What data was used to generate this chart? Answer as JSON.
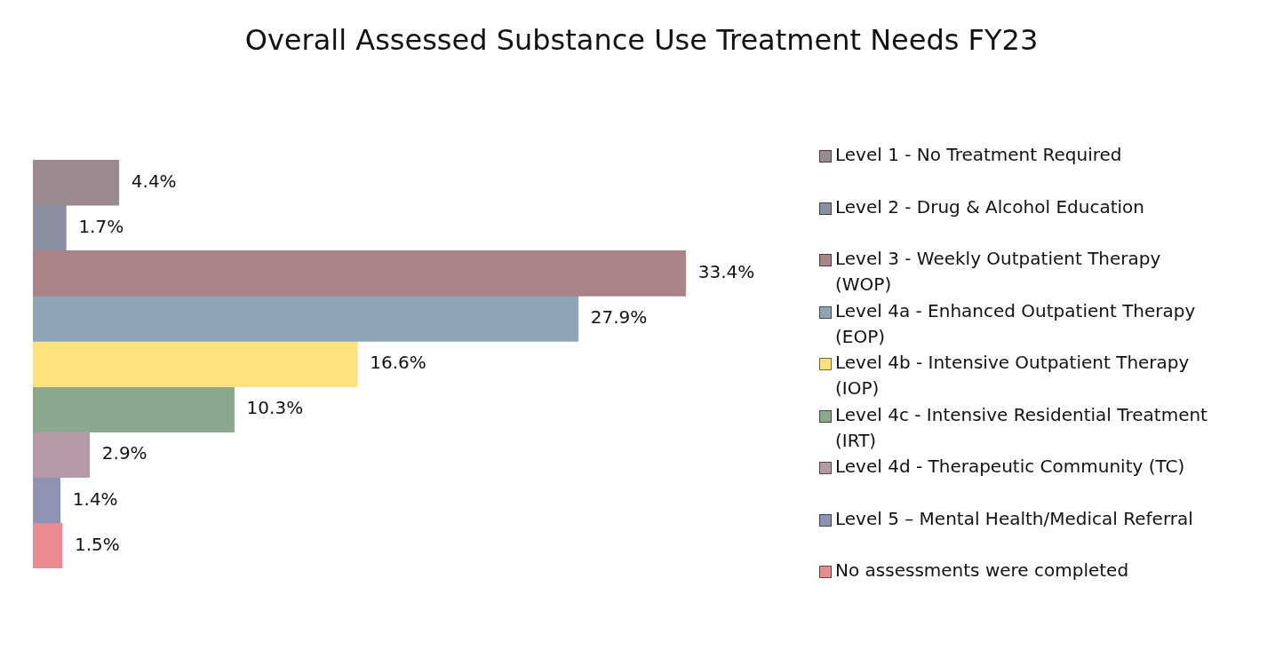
{
  "chart_data": {
    "type": "bar",
    "title": "Overall Assessed Substance Use Treatment Needs FY23",
    "orientation": "horizontal",
    "categories": [
      null
    ],
    "legend": "right",
    "tick_labels": false,
    "series": [
      {
        "name": "Level 1 - No Treatment Required",
        "color": "#9b8a8f",
        "values": [
          4.4
        ],
        "value_labels": [
          "4.4%"
        ]
      },
      {
        "name": "Level 2 - Drug & Alcohol Education",
        "color": "#8a90a0",
        "values": [
          1.7
        ],
        "value_labels": [
          "1.7%"
        ]
      },
      {
        "name": "Level 3 - Weekly Outpatient Therapy (WOP)",
        "color": "#a98387",
        "values": [
          33.4
        ],
        "value_labels": [
          "33.4%"
        ]
      },
      {
        "name": "Level 4a - Enhanced Outpatient Therapy (EOP)",
        "color": "#8fa4b5",
        "values": [
          27.9
        ],
        "value_labels": [
          "27.9%"
        ]
      },
      {
        "name": "Level 4b - Intensive Outpatient Therapy (IOP)",
        "color": "#ffe27d",
        "values": [
          16.6
        ],
        "value_labels": [
          "16.6%"
        ]
      },
      {
        "name": "Level 4c - Intensive Residential Treatment (IRT)",
        "color": "#8ba88f",
        "values": [
          10.3
        ],
        "value_labels": [
          "10.3%"
        ]
      },
      {
        "name": "Level 4d - Therapeutic Community (TC)",
        "color": "#b59ba7",
        "values": [
          2.9
        ],
        "value_labels": [
          "2.9%"
        ]
      },
      {
        "name": "Level 5 – Mental Health/Medical Referral",
        "color": "#8d93b1",
        "values": [
          1.4
        ],
        "value_labels": [
          "1.4%"
        ]
      },
      {
        "name": "No assessments were completed",
        "color": "#e88c92",
        "values": [
          1.5
        ],
        "value_labels": [
          "1.5%"
        ]
      }
    ]
  }
}
